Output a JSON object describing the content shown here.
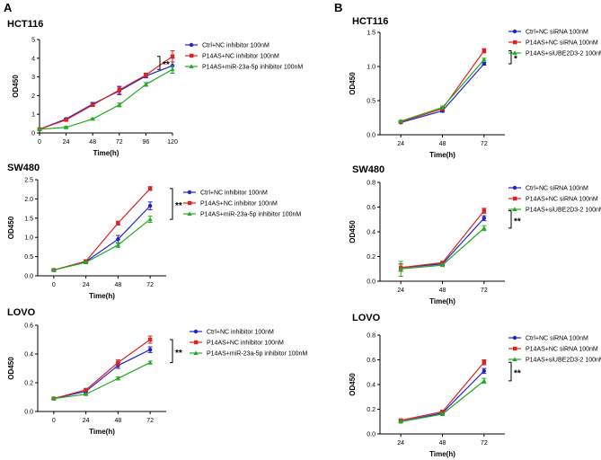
{
  "panels": [
    {
      "letter": "A"
    },
    {
      "letter": "B"
    }
  ],
  "chart_data": [
    {
      "type": "line",
      "panel": "A",
      "cell_label": "HCT116",
      "x": [
        0,
        24,
        48,
        72,
        96,
        120
      ],
      "xlabel": "Time(h)",
      "ylabel": "OD450",
      "xlim": [
        0,
        120
      ],
      "ylim": [
        0,
        5
      ],
      "xticks": [
        "0",
        "24",
        "48",
        "72",
        "96",
        "120"
      ],
      "yticks": [
        "0",
        "1",
        "2",
        "3",
        "4",
        "5"
      ],
      "series": [
        {
          "name": "Ctrl+NC inhibitor 100nM",
          "color": "#2222cc",
          "values": [
            0.2,
            0.75,
            1.55,
            2.25,
            3.05,
            3.6
          ],
          "err": [
            0.05,
            0.05,
            0.08,
            0.2,
            0.1,
            0.4
          ]
        },
        {
          "name": "P14AS+NC inhibitor 100nM",
          "color": "#dd2222",
          "values": [
            0.2,
            0.7,
            1.5,
            2.3,
            3.1,
            4.1
          ],
          "err": [
            0.05,
            0.05,
            0.08,
            0.2,
            0.1,
            0.3
          ]
        },
        {
          "name": "P14AS+miR-23a-5p inhibitor 100nM",
          "color": "#22aa22",
          "values": [
            0.2,
            0.3,
            0.75,
            1.5,
            2.6,
            3.4
          ],
          "err": [
            0.05,
            0.05,
            0.05,
            0.1,
            0.1,
            0.2
          ]
        }
      ],
      "significance": "**"
    },
    {
      "type": "line",
      "panel": "A",
      "cell_label": "SW480",
      "x": [
        0,
        24,
        48,
        72
      ],
      "xlabel": "Time(h)",
      "ylabel": "OD450",
      "xlim": [
        -12,
        84
      ],
      "ylim": [
        0,
        2.5
      ],
      "xticks": [
        "0",
        "24",
        "48",
        "72"
      ],
      "yticks": [
        "0.0",
        "0.5",
        "1.0",
        "1.5",
        "2.0",
        "2.5"
      ],
      "series": [
        {
          "name": "Ctrl+NC inhibitor 100nM",
          "color": "#2222cc",
          "values": [
            0.15,
            0.37,
            0.95,
            1.82
          ],
          "err": [
            0.02,
            0.03,
            0.1,
            0.1
          ]
        },
        {
          "name": "P14AS+NC inhibitor 100nM",
          "color": "#dd2222",
          "values": [
            0.15,
            0.38,
            1.37,
            2.27
          ],
          "err": [
            0.02,
            0.03,
            0.05,
            0.05
          ]
        },
        {
          "name": "P14AS+miR-23a-5p inhibitor 100nM",
          "color": "#22aa22",
          "values": [
            0.15,
            0.35,
            0.8,
            1.47
          ],
          "err": [
            0.02,
            0.03,
            0.06,
            0.08
          ]
        }
      ],
      "significance": "**"
    },
    {
      "type": "line",
      "panel": "A",
      "cell_label": "LOVO",
      "x": [
        0,
        24,
        48,
        72
      ],
      "xlabel": "Time(h)",
      "ylabel": "OD450",
      "xlim": [
        -12,
        84
      ],
      "ylim": [
        0,
        0.6
      ],
      "xticks": [
        "0",
        "24",
        "48",
        "72"
      ],
      "yticks": [
        "0.0",
        "0.2",
        "0.4",
        "0.6"
      ],
      "series": [
        {
          "name": "Ctrl+NC inhibitor 100nM",
          "color": "#2222cc",
          "values": [
            0.09,
            0.14,
            0.32,
            0.43
          ],
          "err": [
            0.005,
            0.01,
            0.02,
            0.02
          ]
        },
        {
          "name": "P14AS+NC inhibitor 100nM",
          "color": "#dd2222",
          "values": [
            0.09,
            0.15,
            0.34,
            0.5
          ],
          "err": [
            0.005,
            0.01,
            0.02,
            0.025
          ]
        },
        {
          "name": "P14AS+miR-23a-5p inhibitor 100nM",
          "color": "#22aa22",
          "values": [
            0.09,
            0.12,
            0.23,
            0.34
          ],
          "err": [
            0.005,
            0.005,
            0.01,
            0.01
          ]
        }
      ],
      "significance": "**"
    },
    {
      "type": "line",
      "panel": "B",
      "cell_label": "HCT116",
      "x": [
        24,
        48,
        72
      ],
      "xlabel": "Time(h)",
      "ylabel": "OD450",
      "xlim": [
        12,
        84
      ],
      "ylim": [
        0,
        1.5
      ],
      "xticks": [
        "24",
        "48",
        "72"
      ],
      "yticks": [
        "0.0",
        "0.5",
        "1.0",
        "1.5"
      ],
      "series": [
        {
          "name": "Ctrl+NC siRNA 100nM",
          "color": "#2222cc",
          "values": [
            0.18,
            0.35,
            1.04
          ],
          "err": [
            0.01,
            0.02,
            0.02
          ]
        },
        {
          "name": "P14AS+NC siRNA 100nM",
          "color": "#dd2222",
          "values": [
            0.19,
            0.38,
            1.23
          ],
          "err": [
            0.01,
            0.02,
            0.03
          ]
        },
        {
          "name": "P14AS+siUBE2D3-2 100nM",
          "color": "#22aa22",
          "values": [
            0.2,
            0.4,
            1.1
          ],
          "err": [
            0.01,
            0.02,
            0.02
          ]
        }
      ],
      "significance": "*"
    },
    {
      "type": "line",
      "panel": "B",
      "cell_label": "SW480",
      "x": [
        24,
        48,
        72
      ],
      "xlabel": "Time(h)",
      "ylabel": "OD450",
      "xlim": [
        12,
        84
      ],
      "ylim": [
        0,
        0.8
      ],
      "xticks": [
        "24",
        "48",
        "72"
      ],
      "yticks": [
        "0.0",
        "0.2",
        "0.4",
        "0.6",
        "0.8"
      ],
      "series": [
        {
          "name": "Ctrl+NC siRNA 100nM",
          "color": "#2222cc",
          "values": [
            0.11,
            0.14,
            0.51
          ],
          "err": [
            0.03,
            0.01,
            0.02
          ]
        },
        {
          "name": "P14AS+NC siRNA 100nM",
          "color": "#dd2222",
          "values": [
            0.11,
            0.15,
            0.57
          ],
          "err": [
            0.03,
            0.01,
            0.02
          ]
        },
        {
          "name": "P14AS+siUBE2D3-2 100nM",
          "color": "#22aa22",
          "values": [
            0.1,
            0.13,
            0.43
          ],
          "err": [
            0.06,
            0.01,
            0.02
          ]
        }
      ],
      "significance": "**"
    },
    {
      "type": "line",
      "panel": "B",
      "cell_label": "LOVO",
      "x": [
        24,
        48,
        72
      ],
      "xlabel": "Time(h)",
      "ylabel": "OD450",
      "xlim": [
        12,
        84
      ],
      "ylim": [
        0,
        0.8
      ],
      "xticks": [
        "24",
        "48",
        "72"
      ],
      "yticks": [
        "0.0",
        "0.2",
        "0.4",
        "0.6",
        "0.8"
      ],
      "series": [
        {
          "name": "Ctrl+NC siRNA 100nM",
          "color": "#2222cc",
          "values": [
            0.1,
            0.17,
            0.51
          ],
          "err": [
            0.01,
            0.01,
            0.02
          ]
        },
        {
          "name": "P14AS+NC siRNA 100nM",
          "color": "#dd2222",
          "values": [
            0.11,
            0.18,
            0.58
          ],
          "err": [
            0.01,
            0.01,
            0.02
          ]
        },
        {
          "name": "P14AS+siUBE2D3-2 100nM",
          "color": "#22aa22",
          "values": [
            0.1,
            0.16,
            0.43
          ],
          "err": [
            0.01,
            0.01,
            0.02
          ]
        }
      ],
      "significance": "**"
    }
  ]
}
